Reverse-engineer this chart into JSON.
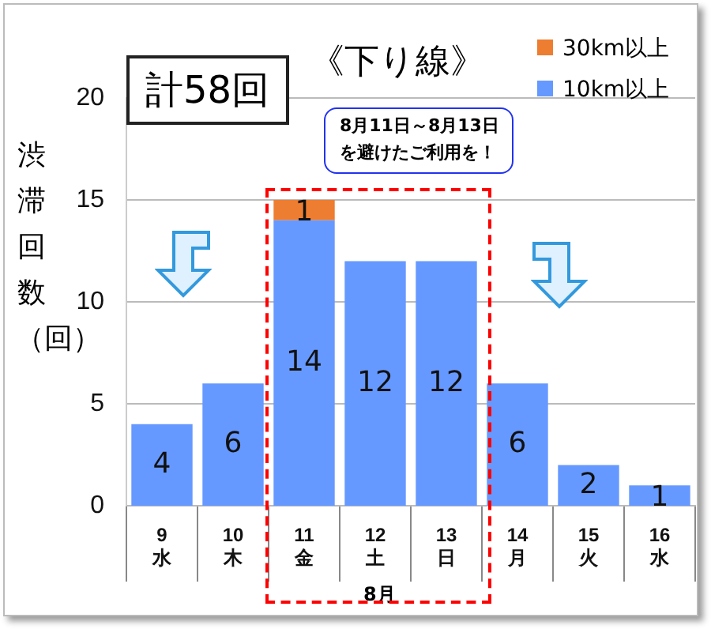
{
  "chart_data": {
    "type": "bar",
    "title": "《下り線》",
    "ylabel": "渋滞回数（回）",
    "xlabel": "8月",
    "categories": [
      "9\n水",
      "10\n木",
      "11\n金",
      "12\n土",
      "13\n日",
      "14\n月",
      "15\n火",
      "16\n水"
    ],
    "stacked": true,
    "series": [
      {
        "name": "10km以上",
        "color": "#6699ff",
        "values": [
          4,
          6,
          14,
          12,
          12,
          6,
          2,
          1
        ],
        "value_labels": [
          "4",
          "6",
          "14",
          "12",
          "12",
          "6",
          "2",
          "1"
        ]
      },
      {
        "name": "30km以上",
        "color": "#ed7d31",
        "values": [
          0,
          0,
          1,
          0,
          0,
          0,
          0,
          0
        ],
        "value_labels": [
          null,
          null,
          "1",
          null,
          null,
          null,
          null,
          null
        ]
      }
    ],
    "ylim": [
      0,
      20
    ],
    "yticks": [
      0,
      5,
      10,
      15,
      20
    ],
    "grid": "y",
    "legend": "top right",
    "annotations": [
      "計58回",
      "8月11日～8月13日",
      "を避けたご利用を！"
    ]
  }
}
